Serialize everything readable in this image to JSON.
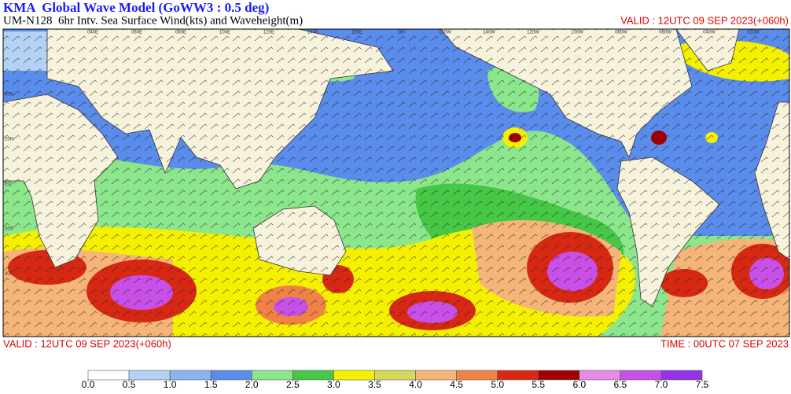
{
  "header": {
    "title": "KMA  Global Wave Model (GoWW3 : 0.5 deg)",
    "subtitle": "UM-N128  6hr Intv. Sea Surface Wind(kts) and Waveheight(m)",
    "valid_top": "VALID : 12UTC 09 SEP 2023(+060h)"
  },
  "footer": {
    "valid": "VALID : 12UTC 09 SEP 2023(+060h)",
    "time": "TIME : 00UTC 07 SEP 2023"
  },
  "map": {
    "lon_labels": [
      "040E",
      "060E",
      "080E",
      "100E",
      "120E",
      "140E",
      "160E",
      "180",
      "160W",
      "140W",
      "120W",
      "100W",
      "080W",
      "060W",
      "040W",
      "020W"
    ],
    "lat_labels": [
      "40N",
      "20N",
      "EQ",
      "20S",
      "40S"
    ]
  },
  "colorbar": {
    "ticks": [
      {
        "value": 0,
        "label": "0.0"
      },
      {
        "value": 0.5,
        "label": "0.5"
      },
      {
        "value": 1,
        "label": "1.0"
      },
      {
        "value": 1.5,
        "label": "1.5"
      },
      {
        "value": 2,
        "label": "2.0"
      },
      {
        "value": 2.5,
        "label": "2.5"
      },
      {
        "value": 3,
        "label": "3.0"
      },
      {
        "value": 3.5,
        "label": "3.5"
      },
      {
        "value": 4,
        "label": "4.0"
      },
      {
        "value": 4.5,
        "label": "4.5"
      },
      {
        "value": 5,
        "label": "5.0"
      },
      {
        "value": 5.5,
        "label": "5.5"
      },
      {
        "value": 6,
        "label": "6.0"
      },
      {
        "value": 6.5,
        "label": "6.5"
      },
      {
        "value": 7,
        "label": "7.0"
      },
      {
        "value": 7.5,
        "label": "7.5"
      }
    ],
    "colors": [
      "#ffffff",
      "#b4d2f5",
      "#8cb4f0",
      "#5a8ceb",
      "#8ce68c",
      "#46c846",
      "#f5f000",
      "#d7d75a",
      "#f5b478",
      "#f08246",
      "#d72814",
      "#a00000",
      "#e68ce6",
      "#c850e6",
      "#9632e6"
    ]
  }
}
